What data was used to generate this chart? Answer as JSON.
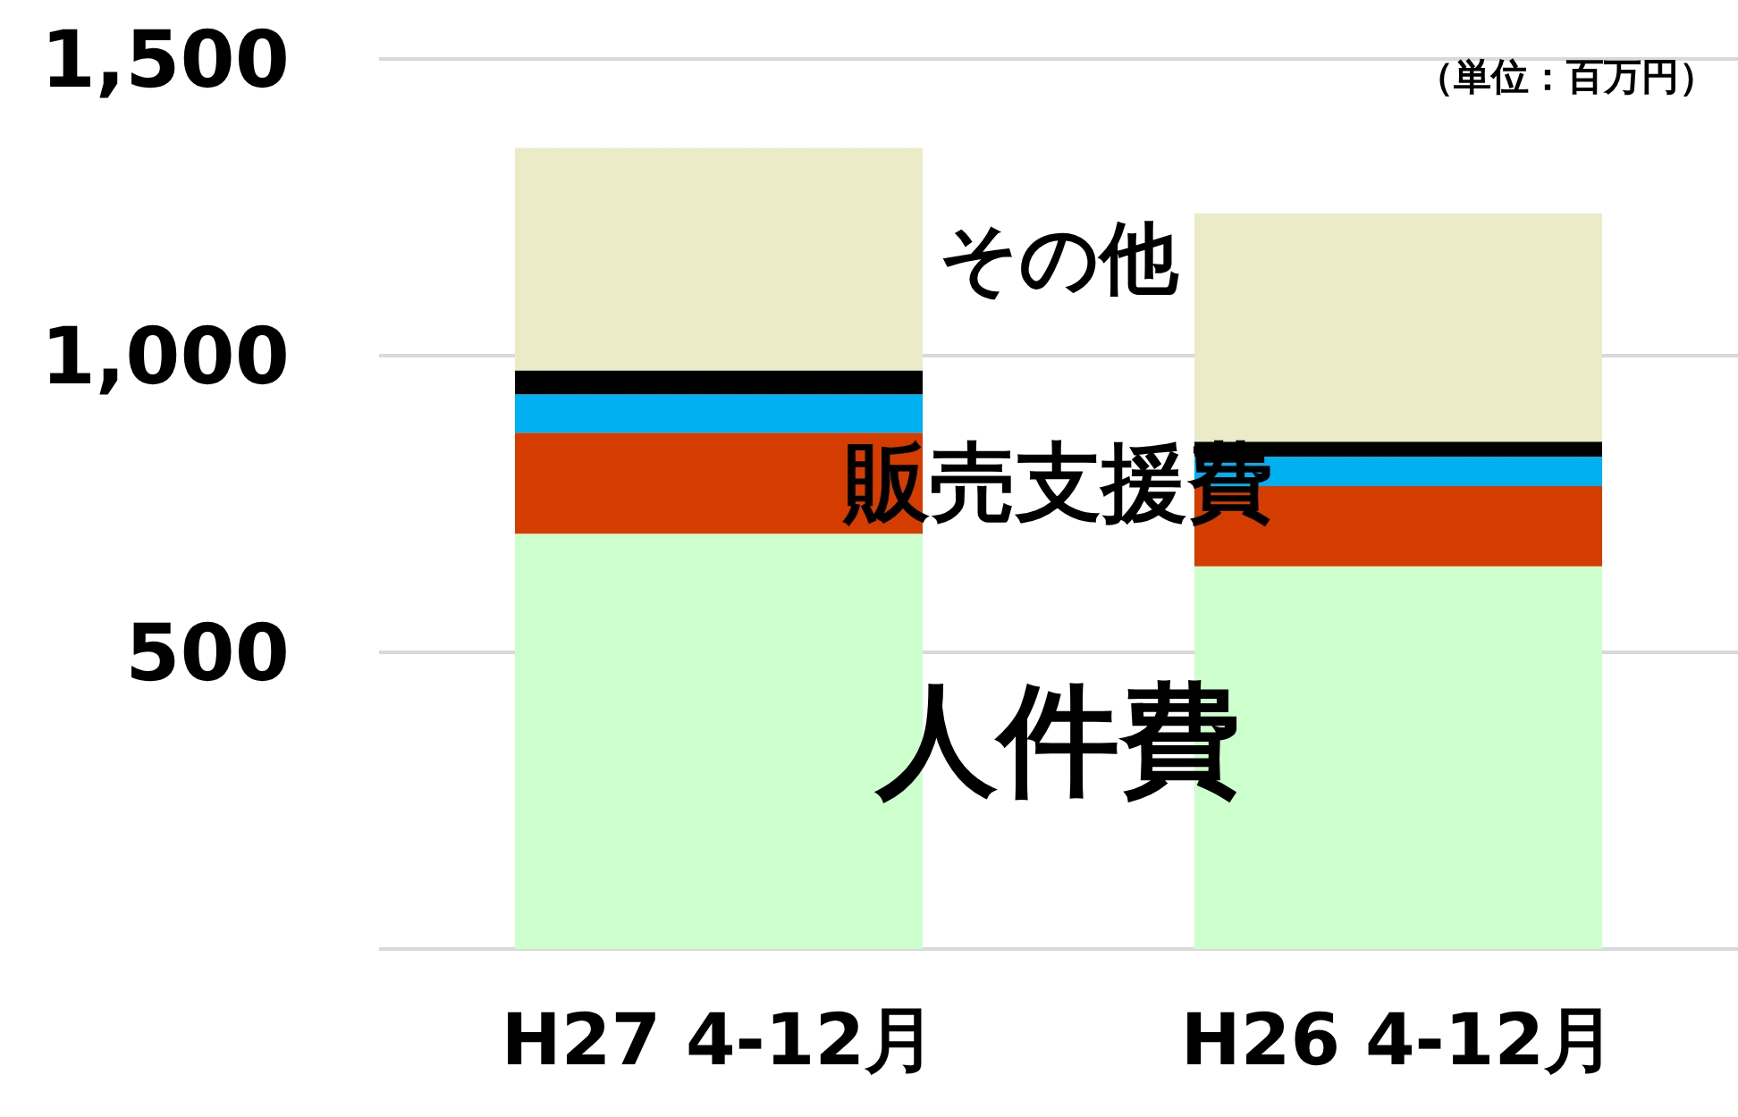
{
  "chart_data": {
    "type": "bar",
    "stacked": true,
    "categories": [
      "H27 4-12月",
      "H26 4-12月"
    ],
    "series": [
      {
        "name": "人件費",
        "color": "#ccffcc",
        "values": [
          700,
          645
        ]
      },
      {
        "name": "販売支援費",
        "color": "#d43c00",
        "values": [
          170,
          135
        ]
      },
      {
        "color": "#00b0f0",
        "values": [
          65,
          50
        ]
      },
      {
        "color": "#000000",
        "values": [
          40,
          25
        ]
      },
      {
        "name": "その他",
        "color": "#ebebc8",
        "values": [
          375,
          385
        ]
      }
    ],
    "ylim": [
      0,
      1500
    ],
    "yticks": [
      {
        "value": 0,
        "label": null
      },
      500,
      {
        "value": 1000,
        "label": "1,000"
      },
      {
        "value": 1500,
        "label": "1,500"
      }
    ],
    "grid": "y",
    "legend": false,
    "annotations": [
      "（単位：百万円）"
    ]
  }
}
